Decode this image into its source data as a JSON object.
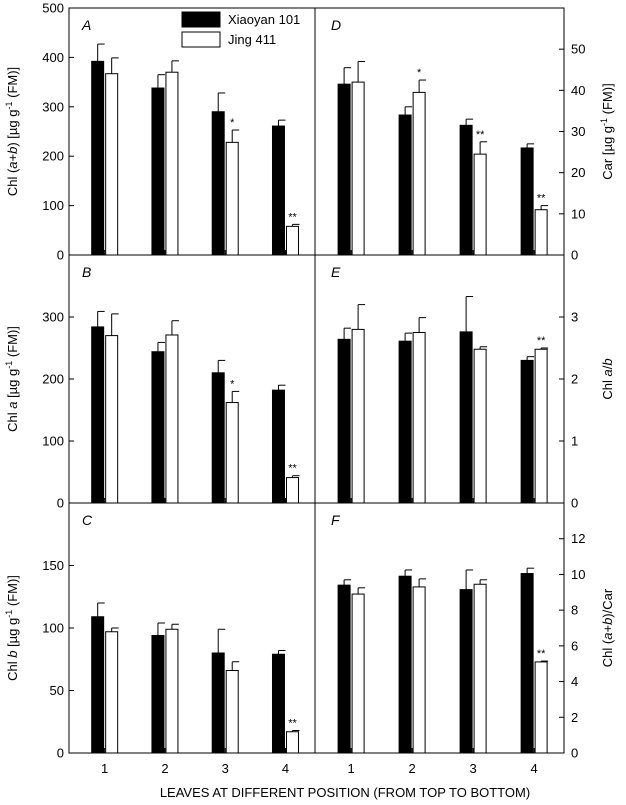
{
  "chart_data": {
    "type": "bar",
    "categories": [
      "1",
      "2",
      "3",
      "4"
    ],
    "xlabel": "LEAVES AT DIFFERENT POSITION (FROM TOP TO BOTTOM)",
    "legend": {
      "placement": "top",
      "entries": [
        {
          "name": "Xiaoyan 101",
          "style": "solid",
          "color": "#000000"
        },
        {
          "name": "Jing 411",
          "style": "open",
          "color": "#ffffff"
        }
      ]
    },
    "panels": [
      {
        "id": "A",
        "column": "left",
        "row": 0,
        "ylim": [
          0,
          500
        ],
        "yticks": [
          0,
          100,
          200,
          300,
          400,
          500
        ],
        "ylabel": "Chl (a+b) [µg g⁻¹ (FM)]",
        "series": [
          {
            "name": "Xiaoyan 101",
            "values": [
              392,
              338,
              290,
              261
            ],
            "errors": [
              35,
              27,
              38,
              12
            ]
          },
          {
            "name": "Jing 411",
            "values": [
              367,
              370,
              228,
              58
            ],
            "errors": [
              32,
              23,
              25,
              4
            ]
          }
        ],
        "significance": [
          {
            "category": "3",
            "series": "Jing 411",
            "mark": "*"
          },
          {
            "category": "4",
            "series": "Jing 411",
            "mark": "**"
          }
        ]
      },
      {
        "id": "B",
        "column": "left",
        "row": 1,
        "ylim": [
          0,
          400
        ],
        "yticks": [
          0,
          100,
          200,
          300
        ],
        "ylabel": "Chl a [µg g⁻¹ (FM)]",
        "series": [
          {
            "name": "Xiaoyan 101",
            "values": [
              284,
              244,
              210,
              182
            ],
            "errors": [
              25,
              15,
              20,
              8
            ]
          },
          {
            "name": "Jing 411",
            "values": [
              270,
              271,
              162,
              41
            ],
            "errors": [
              35,
              23,
              18,
              3
            ]
          }
        ],
        "significance": [
          {
            "category": "3",
            "series": "Jing 411",
            "mark": "*"
          },
          {
            "category": "4",
            "series": "Jing 411",
            "mark": "**"
          }
        ]
      },
      {
        "id": "C",
        "column": "left",
        "row": 2,
        "ylim": [
          0,
          200
        ],
        "yticks": [
          0,
          50,
          100,
          150
        ],
        "ylabel": "Chl b [µg g⁻¹ (FM)]",
        "series": [
          {
            "name": "Xiaoyan 101",
            "values": [
              109,
              94,
              80,
              79
            ],
            "errors": [
              11,
              10,
              19,
              3
            ]
          },
          {
            "name": "Jing 411",
            "values": [
              97,
              99,
              66,
              17
            ],
            "errors": [
              3,
              4,
              7,
              1
            ]
          }
        ],
        "significance": [
          {
            "category": "4",
            "series": "Jing 411",
            "mark": "**"
          }
        ]
      },
      {
        "id": "D",
        "column": "right",
        "row": 0,
        "ylim": [
          0,
          60
        ],
        "yticks": [
          0,
          10,
          20,
          30,
          40,
          50
        ],
        "ylabel": "Car [µg g⁻¹ (FM)]",
        "series": [
          {
            "name": "Xiaoyan 101",
            "values": [
              41.5,
              34,
              31.5,
              26
            ],
            "errors": [
              4,
              2,
              1.5,
              1
            ]
          },
          {
            "name": "Jing 411",
            "values": [
              42,
              39.5,
              24.5,
              11
            ],
            "errors": [
              5,
              3,
              3,
              1
            ]
          }
        ],
        "significance": [
          {
            "category": "2",
            "series": "Jing 411",
            "mark": "*"
          },
          {
            "category": "3",
            "series": "Jing 411",
            "mark": "**"
          },
          {
            "category": "4",
            "series": "Jing 411",
            "mark": "**"
          }
        ]
      },
      {
        "id": "E",
        "column": "right",
        "row": 1,
        "ylim": [
          0,
          4
        ],
        "yticks": [
          0,
          1,
          2,
          3
        ],
        "ylabel": "Chl a/b",
        "series": [
          {
            "name": "Xiaoyan 101",
            "values": [
              2.64,
              2.61,
              2.76,
              2.3
            ],
            "errors": [
              0.18,
              0.13,
              0.57,
              0.06
            ]
          },
          {
            "name": "Jing 411",
            "values": [
              2.8,
              2.75,
              2.48,
              2.48
            ],
            "errors": [
              0.4,
              0.24,
              0.04,
              0.02
            ]
          }
        ],
        "significance": [
          {
            "category": "4",
            "series": "Jing 411",
            "mark": "**"
          }
        ]
      },
      {
        "id": "F",
        "column": "right",
        "row": 2,
        "ylim": [
          0,
          14
        ],
        "yticks": [
          0,
          2,
          4,
          6,
          8,
          10,
          12
        ],
        "ylabel": "Chl (a+b)/Car",
        "series": [
          {
            "name": "Xiaoyan 101",
            "values": [
              9.4,
              9.9,
              9.15,
              10.05
            ],
            "errors": [
              0.3,
              0.35,
              1.1,
              0.3
            ]
          },
          {
            "name": "Jing 411",
            "values": [
              8.9,
              9.3,
              9.45,
              5.1
            ],
            "errors": [
              0.35,
              0.45,
              0.25,
              0.05
            ]
          }
        ],
        "significance": [
          {
            "category": "4",
            "series": "Jing 411",
            "mark": "**"
          }
        ]
      }
    ]
  }
}
